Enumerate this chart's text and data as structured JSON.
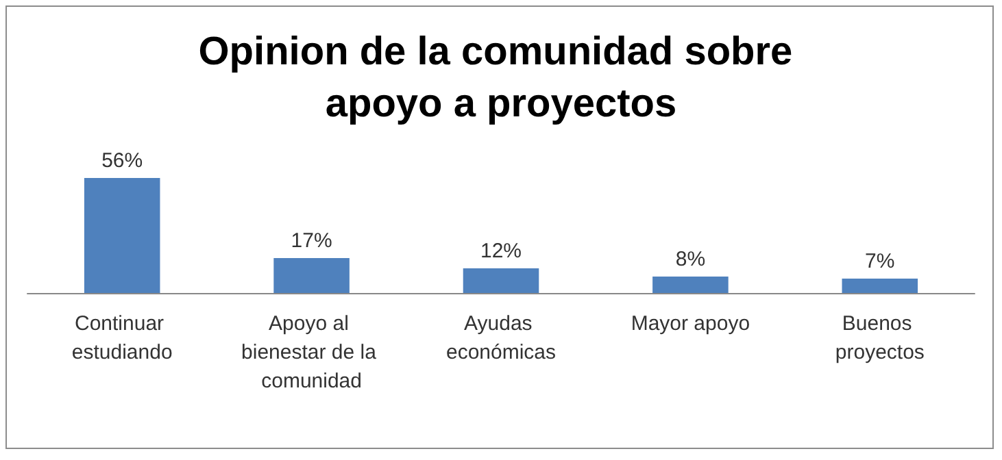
{
  "chart_data": {
    "type": "bar",
    "title": "Opinion de la comunidad sobre apoyo a proyectos",
    "categories": [
      "Continuar estudiando",
      "Apoyo al bienestar de la comunidad",
      "Ayudas económicas",
      "Mayor apoyo",
      "Buenos proyectos"
    ],
    "values": [
      56,
      17,
      12,
      8,
      7
    ],
    "value_labels": [
      "56%",
      "17%",
      "12%",
      "8%",
      "7%"
    ],
    "color": "#4f81bd"
  }
}
